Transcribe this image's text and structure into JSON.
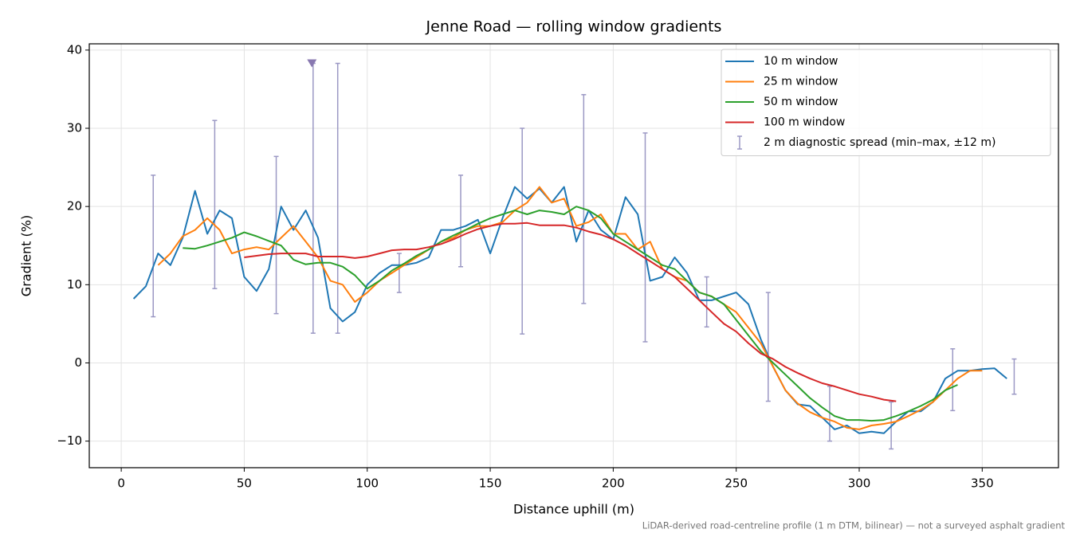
{
  "chart_data": {
    "type": "line",
    "title": "Jenne Road — rolling window gradients",
    "xlabel": "Distance uphill (m)",
    "ylabel": "Gradient (%)",
    "footnote": "LiDAR-derived road-centreline profile (1 m DTM, bilinear) — not a surveyed asphalt gradient",
    "xlim": [
      -13,
      381
    ],
    "ylim": [
      -13.4,
      40.8
    ],
    "xticks": [
      0,
      50,
      100,
      150,
      200,
      250,
      300,
      350
    ],
    "yticks": [
      {
        "value": -10,
        "label": "−10"
      },
      0,
      10,
      20,
      30,
      40
    ],
    "grid": true,
    "legend": "upper right",
    "x": [
      5,
      10,
      15,
      20,
      25,
      30,
      35,
      40,
      45,
      50,
      55,
      60,
      65,
      70,
      75,
      80,
      85,
      90,
      95,
      100,
      105,
      110,
      115,
      120,
      125,
      130,
      135,
      140,
      145,
      150,
      155,
      160,
      165,
      170,
      175,
      180,
      185,
      190,
      195,
      200,
      205,
      210,
      215,
      220,
      225,
      230,
      235,
      240,
      245,
      250,
      255,
      260,
      265,
      270,
      275,
      280,
      285,
      290,
      295,
      300,
      305,
      310,
      315,
      320,
      325,
      330,
      335,
      340,
      345,
      350,
      355,
      360
    ],
    "series": [
      {
        "name": "10 m window",
        "color": "#1f77b4",
        "values": [
          8.2,
          9.8,
          14,
          12.5,
          16,
          22,
          16.5,
          19.5,
          18.5,
          11,
          9.2,
          12,
          20,
          17,
          19.5,
          16,
          7,
          5.3,
          6.5,
          10,
          11.5,
          12.5,
          12.5,
          12.8,
          13.5,
          17,
          17,
          17.5,
          18.3,
          14,
          18.5,
          22.5,
          21,
          22.3,
          20.5,
          22.5,
          15.5,
          19.5,
          17,
          15.8,
          21.2,
          19,
          10.5,
          11,
          13.5,
          11.5,
          8,
          8,
          8.5,
          9,
          7.5,
          3,
          -0.5,
          -3.5,
          -5.3,
          -5.5,
          -7,
          -8.5,
          -8,
          -9,
          -8.8,
          -9,
          -7.5,
          -6.2,
          -6.2,
          -5,
          -2,
          -1,
          -1,
          -0.8,
          -0.7,
          -2
        ]
      },
      {
        "name": "25 m window",
        "color": "#ff7f0e",
        "values": [
          null,
          null,
          12.5,
          14,
          16.2,
          17,
          18.5,
          17,
          14,
          14.5,
          14.8,
          14.5,
          16,
          17.5,
          15.5,
          13.5,
          10.5,
          10,
          7.8,
          9,
          10.5,
          11.5,
          12.5,
          13.5,
          14.5,
          15.5,
          16,
          17,
          17.5,
          17.5,
          18,
          19.5,
          20.5,
          22.5,
          20.5,
          21,
          17.5,
          18,
          19,
          16.5,
          16.5,
          14.5,
          15.5,
          12,
          11,
          10.5,
          9,
          8.5,
          7.5,
          6.5,
          4.5,
          2.5,
          -0.5,
          -3.5,
          -5.2,
          -6.3,
          -7,
          -7.5,
          -8.3,
          -8.5,
          -8,
          -7.8,
          -7.5,
          -6.8,
          -6,
          -5,
          -3.5,
          -2,
          -1,
          -1,
          null,
          null
        ]
      },
      {
        "name": "50 m window",
        "color": "#2ca02c",
        "values": [
          null,
          null,
          null,
          null,
          14.7,
          14.6,
          15,
          15.5,
          16,
          16.7,
          16.2,
          15.6,
          15,
          13.2,
          12.6,
          12.8,
          12.8,
          12.3,
          11.2,
          9.5,
          10.5,
          11.8,
          12.7,
          13.7,
          14.5,
          15.5,
          16.3,
          17,
          17.8,
          18.5,
          19,
          19.5,
          19,
          19.5,
          19.3,
          19,
          20,
          19.5,
          18.5,
          16.5,
          15.5,
          14.5,
          13.5,
          12.5,
          12,
          10.5,
          9,
          8.5,
          7.5,
          5.5,
          3.5,
          1.5,
          0,
          -1.5,
          -3,
          -4.5,
          -5.7,
          -6.8,
          -7.3,
          -7.3,
          -7.4,
          -7.3,
          -6.8,
          -6.2,
          -5.5,
          -4.7,
          -3.5,
          -2.8,
          null,
          null,
          null,
          null
        ]
      },
      {
        "name": "100 m window",
        "color": "#d62728",
        "values": [
          null,
          null,
          null,
          null,
          null,
          null,
          null,
          null,
          null,
          13.5,
          13.7,
          13.9,
          14,
          14,
          14,
          13.6,
          13.6,
          13.6,
          13.4,
          13.6,
          14,
          14.4,
          14.5,
          14.5,
          14.8,
          15.2,
          15.8,
          16.5,
          17.1,
          17.5,
          17.8,
          17.8,
          17.9,
          17.6,
          17.6,
          17.6,
          17.3,
          16.8,
          16.4,
          15.8,
          15,
          14,
          13,
          12,
          11,
          9.5,
          8,
          6.5,
          5,
          4,
          2.5,
          1.2,
          0.5,
          -0.5,
          -1.3,
          -2,
          -2.6,
          -3,
          -3.5,
          -4,
          -4.3,
          -4.7,
          -4.9,
          null,
          null,
          null,
          null,
          null,
          null,
          null,
          null,
          null
        ]
      }
    ],
    "error_bars": {
      "name": "2 m diagnostic spread (min–max, ±12 m)",
      "color": "#9b98c4",
      "x": [
        13,
        38,
        63,
        78,
        88,
        113,
        138,
        163,
        188,
        213,
        238,
        263,
        288,
        313,
        338,
        363
      ],
      "low": [
        5.9,
        9.5,
        6.3,
        3.8,
        3.8,
        9,
        12.3,
        3.7,
        7.6,
        2.7,
        4.6,
        -4.9,
        -10,
        -11,
        -6.1,
        -4
      ],
      "high": [
        24,
        31,
        26.4,
        38.3,
        38.3,
        14,
        24,
        30,
        34.3,
        29.4,
        11,
        9,
        -3,
        -5,
        1.8,
        0.5
      ]
    },
    "marker": {
      "x": 77.5,
      "y": 38.3,
      "color": "#8878b0"
    }
  }
}
